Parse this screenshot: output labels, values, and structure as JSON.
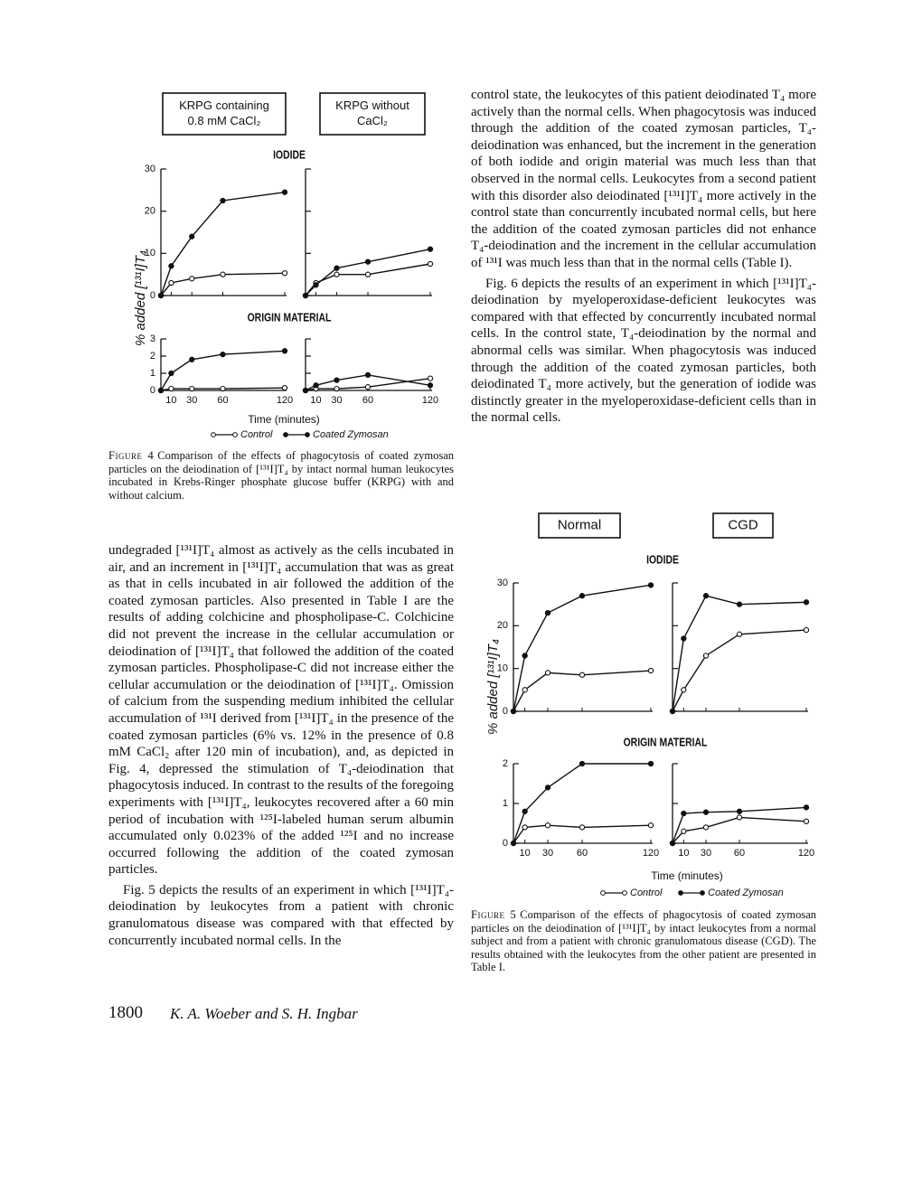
{
  "figure4": {
    "boxes": [
      [
        "KRPG containing",
        "0.8 mM CaCl₂"
      ],
      [
        "KRPG without",
        "CaCl₂"
      ]
    ],
    "y_label": "% added [¹³¹I]T₄",
    "x_label": "Time (minutes)",
    "x": [
      0,
      10,
      30,
      60,
      120
    ],
    "xlim": [
      0,
      120
    ],
    "xticks": [
      10,
      30,
      60,
      120
    ],
    "legend": [
      "Control",
      "Coated Zymosan"
    ],
    "panels": [
      {
        "title": "IODIDE",
        "ylim": [
          0,
          30
        ],
        "yticks": [
          0,
          10,
          20,
          30
        ],
        "subplots": [
          {
            "series": [
              [
                0,
                3,
                4,
                5,
                5.3
              ],
              [
                0,
                7,
                14,
                22.5,
                24.5
              ]
            ]
          },
          {
            "series": [
              [
                0,
                3,
                5,
                5,
                7.5
              ],
              [
                0,
                2.5,
                6.5,
                8,
                11
              ]
            ]
          }
        ]
      },
      {
        "title": "ORIGIN MATERIAL",
        "ylim": [
          0,
          3
        ],
        "yticks": [
          0,
          1,
          2,
          3
        ],
        "subplots": [
          {
            "series": [
              [
                0,
                0.1,
                0.1,
                0.1,
                0.15
              ],
              [
                0,
                1.0,
                1.8,
                2.1,
                2.3
              ]
            ]
          },
          {
            "series": [
              [
                0,
                0.1,
                0.1,
                0.2,
                0.7
              ],
              [
                0,
                0.3,
                0.6,
                0.9,
                0.3
              ]
            ]
          }
        ]
      }
    ],
    "caption": {
      "label": "Figure 4",
      "text": "Comparison of the effects of phagocytosis of coated zymosan particles on the deiodination of [¹³¹I]T₄ by intact normal human leukocytes incubated in Krebs-Ringer phosphate glucose buffer (KRPG) with and without calcium."
    }
  },
  "figure5": {
    "boxes": [
      [
        "Normal"
      ],
      [
        "CGD"
      ]
    ],
    "y_label": "% added [¹³¹I]T₄",
    "x_label": "Time (minutes)",
    "x": [
      0,
      10,
      30,
      60,
      120
    ],
    "xlim": [
      0,
      120
    ],
    "xticks": [
      10,
      30,
      60,
      120
    ],
    "legend": [
      "Control",
      "Coated Zymosan"
    ],
    "panels": [
      {
        "title": "IODIDE",
        "ylim": [
          0,
          30
        ],
        "yticks": [
          0,
          10,
          20,
          30
        ],
        "subplots": [
          {
            "series": [
              [
                0,
                5,
                9,
                8.5,
                9.5
              ],
              [
                0,
                13,
                23,
                27,
                29.5
              ]
            ]
          },
          {
            "series": [
              [
                0,
                5,
                13,
                18,
                19
              ],
              [
                0,
                17,
                27,
                25,
                25.5
              ]
            ]
          }
        ]
      },
      {
        "title": "ORIGIN MATERIAL",
        "ylim": [
          0,
          2
        ],
        "yticks": [
          0,
          1,
          2
        ],
        "subplots": [
          {
            "series": [
              [
                0,
                0.4,
                0.45,
                0.4,
                0.45
              ],
              [
                0,
                0.8,
                1.4,
                2,
                2
              ]
            ]
          },
          {
            "series": [
              [
                0,
                0.3,
                0.4,
                0.65,
                0.55
              ],
              [
                0,
                0.75,
                0.78,
                0.8,
                0.9
              ]
            ]
          }
        ]
      }
    ],
    "caption": {
      "label": "Figure 5",
      "text": "Comparison of the effects of phagocytosis of coated zymosan particles on the deiodination of [¹³¹I]T₄ by intact leukocytes from a normal subject and from a patient with chronic granulomatous disease (CGD). The results obtained with the leukocytes from the other patient are presented in Table I."
    }
  },
  "left_column": {
    "paragraphs": [
      "undegraded [¹³¹I]T₄ almost as actively as the cells incubated in air, and an increment in [¹³¹I]T₄ accumulation that was as great as that in cells incubated in air followed the addition of the coated zymosan particles. Also presented in Table I are the results of adding colchicine and phospholipase-C. Colchicine did not prevent the increase in the cellular accumulation or deiodination of [¹³¹I]T₄ that followed the addition of the coated zymosan particles. Phospholipase-C did not increase either the cellular accumulation or the deiodination of [¹³¹I]T₄. Omission of calcium from the suspending medium inhibited the cellular accumulation of ¹³¹I derived from [¹³¹I]T₄ in the presence of the coated zymosan particles (6% vs. 12% in the presence of 0.8 mM CaCl₂ after 120 min of incubation), and, as depicted in Fig. 4, depressed the stimulation of T₄-deiodination that phagocytosis induced. In contrast to the results of the foregoing experiments with [¹³¹I]T₄, leukocytes recovered after a 60 min period of incubation with ¹²⁵I-labeled human serum albumin accumulated only 0.023% of the added ¹²⁵I and no increase occurred following the addition of the coated zymosan particles.",
      "Fig. 5 depicts the results of an experiment in which [¹³¹I]T₄-deiodination by leukocytes from a patient with chronic granulomatous disease was compared with that effected by concurrently incubated normal cells. In the"
    ]
  },
  "right_column": {
    "paragraphs": [
      "control state, the leukocytes of this patient deiodinated T₄ more actively than the normal cells. When phagocytosis was induced through the addition of the coated zymosan particles, T₄-deiodination was enhanced, but the increment in the generation of both iodide and origin material was much less than that observed in the normal cells. Leukocytes from a second patient with this disorder also deiodinated [¹³¹I]T₄ more actively in the control state than concurrently incubated normal cells, but here the addition of the coated zymosan particles did not enhance T₄-deiodination and the increment in the cellular accumulation of ¹³¹I was much less than that in the normal cells (Table I).",
      "Fig. 6 depicts the results of an experiment in which [¹³¹I]T₄-deiodination by myeloperoxidase-deficient leukocytes was compared with that effected by concurrently incubated normal cells. In the control state, T₄-deiodination by the normal and abnormal cells was similar. When phagocytosis was induced through the addition of the coated zymosan particles, both deiodinated T₄ more actively, but the generation of iodide was distinctly greater in the myeloperoxidase-deficient cells than in the normal cells."
    ]
  },
  "footer": {
    "page": "1800",
    "authors": "K. A. Woeber and S. H. Ingbar"
  }
}
